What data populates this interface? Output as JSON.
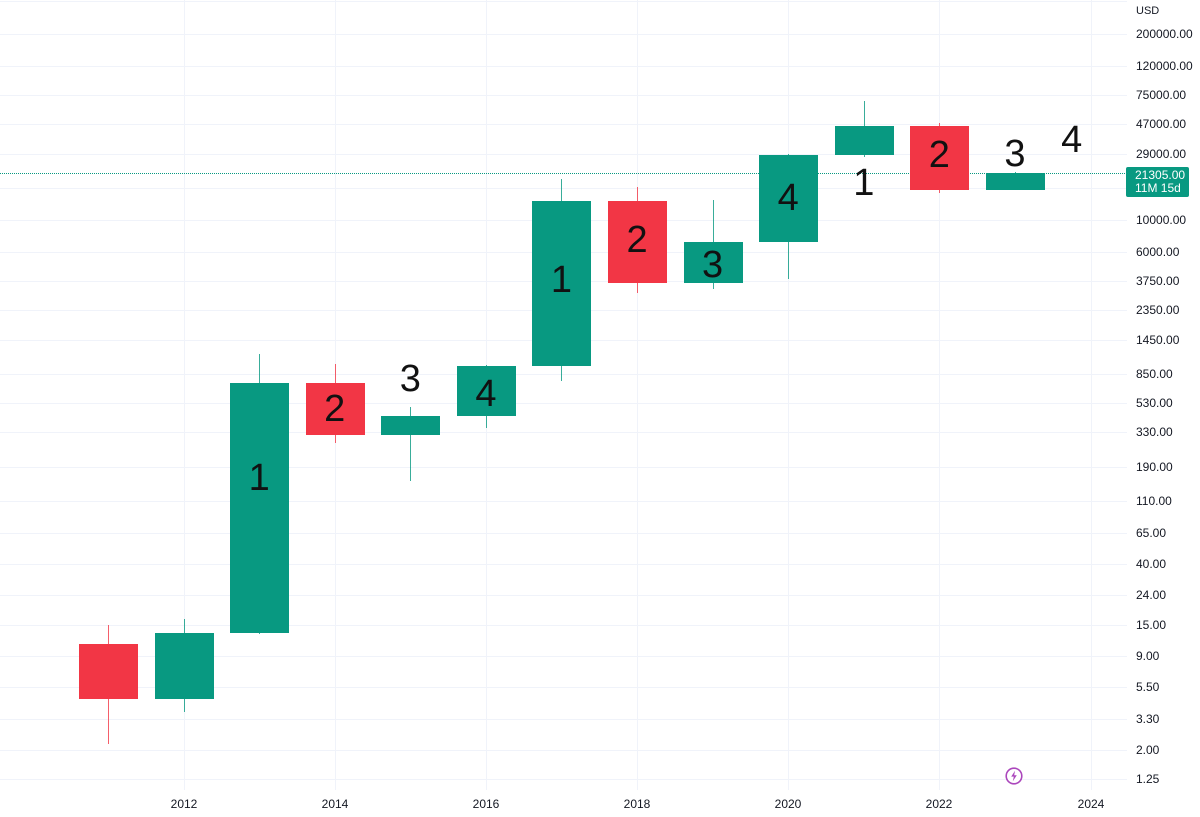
{
  "price_axis": {
    "currency": "USD",
    "last_price": "21305.00",
    "countdown": "11M 15d"
  },
  "colors": {
    "up": "#089981",
    "down": "#f23645",
    "grid": "#f0f3fa",
    "text": "#131722",
    "last_price": "#089981",
    "event_icon": "#ab47bc"
  },
  "event_icon": {
    "name": "lightning-icon"
  },
  "chart_data": {
    "type": "candlestick",
    "title": "",
    "xlabel": "",
    "ylabel": "USD",
    "y_scale": "log",
    "ylim": [
      1.25,
      200000
    ],
    "grid": true,
    "legend": null,
    "last_price_line": 21305,
    "categories": [
      "2011",
      "2012",
      "2013",
      "2014",
      "2015",
      "2016",
      "2017",
      "2018",
      "2019",
      "2020",
      "2021",
      "2022",
      "2023"
    ],
    "candles": [
      {
        "x": "2011",
        "open": 11.0,
        "high": 14.9,
        "low": 2.2,
        "close": 4.5
      },
      {
        "x": "2012",
        "open": 4.5,
        "high": 16.4,
        "low": 3.7,
        "close": 13.1
      },
      {
        "x": "2013",
        "open": 13.1,
        "high": 1164,
        "low": 12.9,
        "close": 730
      },
      {
        "x": "2014",
        "open": 730,
        "high": 991,
        "low": 278,
        "close": 316
      },
      {
        "x": "2015",
        "open": 316,
        "high": 497,
        "low": 151,
        "close": 430
      },
      {
        "x": "2016",
        "open": 430,
        "high": 975,
        "low": 354,
        "close": 960
      },
      {
        "x": "2017",
        "open": 960,
        "high": 19400,
        "low": 753,
        "close": 13630
      },
      {
        "x": "2018",
        "open": 13630,
        "high": 17070,
        "low": 3104,
        "close": 3646
      },
      {
        "x": "2019",
        "open": 3646,
        "high": 13840,
        "low": 3311,
        "close": 7050
      },
      {
        "x": "2020",
        "open": 7050,
        "high": 29000,
        "low": 3888,
        "close": 28570
      },
      {
        "x": "2021",
        "open": 28500,
        "high": 68070,
        "low": 27700,
        "close": 45530
      },
      {
        "x": "2022",
        "open": 45530,
        "high": 47780,
        "low": 15500,
        "close": 16270
      },
      {
        "x": "2023",
        "open": 16270,
        "high": 21800,
        "low": 16270,
        "close": 21305
      }
    ],
    "y_ticks": [
      "200000.00",
      "120000.00",
      "75000.00",
      "47000.00",
      "29000.00",
      "10000.00",
      "6000.00",
      "3750.00",
      "2350.00",
      "1450.00",
      "850.00",
      "530.00",
      "330.00",
      "190.00",
      "110.00",
      "65.00",
      "40.00",
      "24.00",
      "15.00",
      "9.00",
      "5.50",
      "3.30",
      "2.00",
      "1.25"
    ],
    "x_ticks": [
      "2012",
      "2014",
      "2016",
      "2018",
      "2020",
      "2022",
      "2024"
    ],
    "annotations": [
      {
        "text": "1",
        "x": 2013,
        "y": 158
      },
      {
        "text": "2",
        "x": 2014,
        "y": 480
      },
      {
        "text": "3",
        "x": 2015,
        "y": 778
      },
      {
        "text": "4",
        "x": 2016,
        "y": 611
      },
      {
        "text": "1",
        "x": 2017,
        "y": 3824
      },
      {
        "text": "2",
        "x": 2018,
        "y": 7280
      },
      {
        "text": "3",
        "x": 2019,
        "y": 4868
      },
      {
        "text": "4",
        "x": 2020,
        "y": 14300
      },
      {
        "text": "1",
        "x": 2021,
        "y": 18200
      },
      {
        "text": "2",
        "x": 2022,
        "y": 28570
      },
      {
        "text": "3",
        "x": 2023,
        "y": 29030
      },
      {
        "text": "4",
        "x": 2023.75,
        "y": 36360
      }
    ]
  }
}
